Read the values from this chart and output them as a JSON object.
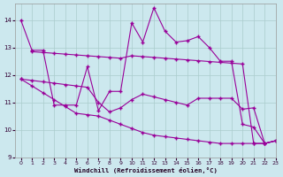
{
  "title": "",
  "xlabel": "Windchill (Refroidissement éolien,°C)",
  "ylabel": "",
  "bg_color": "#cce8ee",
  "line_color": "#990099",
  "grid_color": "#aacccc",
  "xlim": [
    -0.5,
    23
  ],
  "ylim": [
    9,
    14.6
  ],
  "yticks": [
    9,
    10,
    11,
    12,
    13,
    14
  ],
  "xticks": [
    0,
    1,
    2,
    3,
    4,
    5,
    6,
    7,
    8,
    9,
    10,
    11,
    12,
    13,
    14,
    15,
    16,
    17,
    18,
    19,
    20,
    21,
    22,
    23
  ],
  "series1_x": [
    0,
    1,
    2,
    3,
    4,
    5,
    6,
    7,
    8,
    9,
    10,
    11,
    12,
    13,
    14,
    15,
    16,
    17,
    18,
    19,
    20,
    21,
    22,
    23
  ],
  "series1_y": [
    14.0,
    12.9,
    12.9,
    10.9,
    10.9,
    10.9,
    12.3,
    10.7,
    11.4,
    11.4,
    13.9,
    13.2,
    14.45,
    13.6,
    13.2,
    13.25,
    13.4,
    13.0,
    12.5,
    12.5,
    10.2,
    10.1,
    9.5,
    9.6
  ],
  "series2_x": [
    1,
    2,
    3,
    4,
    5,
    6,
    7,
    8,
    9,
    10,
    11,
    12,
    13,
    14,
    15,
    16,
    17,
    18,
    19,
    20,
    21,
    22,
    23
  ],
  "series2_y": [
    12.85,
    12.82,
    12.79,
    12.76,
    12.73,
    12.7,
    12.67,
    12.64,
    12.61,
    12.7,
    12.67,
    12.64,
    12.61,
    12.58,
    12.55,
    12.52,
    12.49,
    12.46,
    12.43,
    12.4,
    9.5,
    9.5,
    9.6
  ],
  "series3_x": [
    0,
    1,
    2,
    3,
    4,
    5,
    6,
    7,
    8,
    9,
    10,
    11,
    12,
    13,
    14,
    15,
    16,
    17,
    18,
    19,
    20,
    21,
    22,
    23
  ],
  "series3_y": [
    11.85,
    11.8,
    11.75,
    11.7,
    11.65,
    11.6,
    11.55,
    11.0,
    10.65,
    10.8,
    11.1,
    11.3,
    11.2,
    11.1,
    11.0,
    10.9,
    11.15,
    11.15,
    11.15,
    11.15,
    10.75,
    10.8,
    9.5,
    9.6
  ],
  "series4_x": [
    0,
    1,
    2,
    3,
    4,
    5,
    6,
    7,
    8,
    9,
    10,
    11,
    12,
    13,
    14,
    15,
    16,
    17,
    18,
    19,
    20,
    21,
    22,
    23
  ],
  "series4_y": [
    11.85,
    11.6,
    11.35,
    11.1,
    10.85,
    10.6,
    10.55,
    10.5,
    10.35,
    10.2,
    10.05,
    9.9,
    9.8,
    9.75,
    9.7,
    9.65,
    9.6,
    9.55,
    9.5,
    9.5,
    9.5,
    9.5,
    9.5,
    9.6
  ]
}
